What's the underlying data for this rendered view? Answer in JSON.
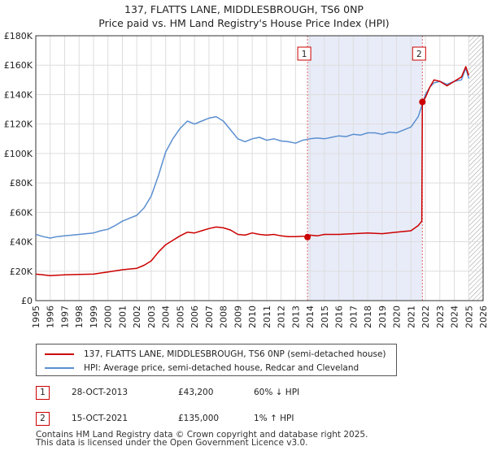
{
  "chart_data": {
    "type": "line",
    "title": "137, FLATTS LANE, MIDDLESBROUGH, TS6 0NP",
    "subtitle": "Price paid vs. HM Land Registry's House Price Index (HPI)",
    "xlabel": "",
    "ylabel": "",
    "xlim": [
      1995,
      2026
    ],
    "ylim": [
      0,
      180000
    ],
    "x_ticks": [
      1995,
      1996,
      1997,
      1998,
      1999,
      2000,
      2001,
      2002,
      2003,
      2004,
      2005,
      2006,
      2007,
      2008,
      2009,
      2010,
      2011,
      2012,
      2013,
      2014,
      2015,
      2016,
      2017,
      2018,
      2019,
      2020,
      2021,
      2022,
      2023,
      2024,
      2025,
      2026
    ],
    "y_ticks": [
      0,
      20000,
      40000,
      60000,
      80000,
      100000,
      120000,
      140000,
      160000,
      180000
    ],
    "y_tick_labels": [
      "£0",
      "£20K",
      "£40K",
      "£60K",
      "£80K",
      "£100K",
      "£120K",
      "£140K",
      "£160K",
      "£180K"
    ],
    "grid": true,
    "future_hatch_from": 2025.0,
    "shaded_range": [
      2013.83,
      2021.79
    ],
    "series": [
      {
        "name": "137, FLATTS LANE, MIDDLESBROUGH, TS6 0NP (semi-detached house)",
        "color": "#cc0000",
        "x": [
          1995.0,
          1995.5,
          1996.0,
          1997.0,
          1998.0,
          1999.0,
          2000.0,
          2001.0,
          2001.5,
          2002.0,
          2002.5,
          2003.0,
          2003.5,
          2004.0,
          2004.5,
          2005.0,
          2005.5,
          2006.0,
          2006.5,
          2007.0,
          2007.5,
          2008.0,
          2008.5,
          2009.0,
          2009.5,
          2010.0,
          2010.5,
          2011.0,
          2011.5,
          2012.0,
          2012.5,
          2013.0,
          2013.5,
          2013.83,
          2014.0,
          2014.5,
          2015.0,
          2016.0,
          2017.0,
          2018.0,
          2019.0,
          2020.0,
          2020.5,
          2021.0,
          2021.5,
          2021.75,
          2021.79,
          2022.0,
          2022.3,
          2022.6,
          2023.0,
          2023.5,
          2024.0,
          2024.5,
          2024.8,
          2025.0
        ],
        "y": [
          18000,
          17500,
          17000,
          17500,
          17800,
          18000,
          19500,
          21000,
          21500,
          22000,
          24000,
          27000,
          33000,
          38000,
          41000,
          44000,
          46500,
          46000,
          47500,
          49000,
          50000,
          49500,
          48000,
          45000,
          44500,
          46000,
          45000,
          44500,
          45000,
          44000,
          43500,
          43500,
          43800,
          43200,
          44500,
          44000,
          45000,
          45000,
          45500,
          46000,
          45500,
          46500,
          47000,
          47500,
          51000,
          54000,
          135000,
          138000,
          145000,
          150000,
          149000,
          146000,
          149000,
          152000,
          159000,
          153000
        ]
      },
      {
        "name": "HPI: Average price, semi-detached house, Redcar and Cleveland",
        "color": "#5b8fd0",
        "x": [
          1995.0,
          1995.5,
          1996.0,
          1996.5,
          1997.0,
          1997.5,
          1998.0,
          1998.5,
          1999.0,
          1999.5,
          2000.0,
          2000.5,
          2001.0,
          2001.5,
          2002.0,
          2002.5,
          2003.0,
          2003.5,
          2004.0,
          2004.5,
          2005.0,
          2005.5,
          2006.0,
          2006.5,
          2007.0,
          2007.5,
          2008.0,
          2008.5,
          2009.0,
          2009.5,
          2010.0,
          2010.5,
          2011.0,
          2011.5,
          2012.0,
          2012.5,
          2013.0,
          2013.5,
          2014.0,
          2014.5,
          2015.0,
          2015.5,
          2016.0,
          2016.5,
          2017.0,
          2017.5,
          2018.0,
          2018.5,
          2019.0,
          2019.5,
          2020.0,
          2020.5,
          2021.0,
          2021.5,
          2021.79,
          2022.0,
          2022.3,
          2022.6,
          2023.0,
          2023.5,
          2024.0,
          2024.5,
          2024.8,
          2025.0
        ],
        "y": [
          45000,
          43500,
          42500,
          43500,
          44000,
          44500,
          45000,
          45500,
          46000,
          47500,
          48500,
          51000,
          54000,
          56000,
          58000,
          63000,
          71000,
          85000,
          101000,
          110000,
          117000,
          122000,
          120000,
          122000,
          124000,
          125000,
          122000,
          116000,
          110000,
          108000,
          110000,
          111000,
          109000,
          110000,
          108500,
          108000,
          107000,
          109000,
          110000,
          110500,
          110000,
          111000,
          112000,
          111500,
          113000,
          112500,
          114000,
          114000,
          113000,
          114500,
          114000,
          116000,
          118000,
          125000,
          133500,
          140000,
          145000,
          148000,
          149000,
          147000,
          149000,
          150000,
          158000,
          151000
        ]
      }
    ],
    "sale_markers": [
      {
        "label": "1",
        "x": 2013.83,
        "y": 43200
      },
      {
        "label": "2",
        "x": 2021.79,
        "y": 135000
      }
    ]
  },
  "legend": {
    "items": [
      {
        "label": "137, FLATTS LANE, MIDDLESBROUGH, TS6 0NP (semi-detached house)",
        "color": "#cc0000"
      },
      {
        "label": "HPI: Average price, semi-detached house, Redcar and Cleveland",
        "color": "#5b8fd0"
      }
    ]
  },
  "sales": [
    {
      "marker": "1",
      "date": "28-OCT-2013",
      "price": "£43,200",
      "hpi": "60% ↓ HPI"
    },
    {
      "marker": "2",
      "date": "15-OCT-2021",
      "price": "£135,000",
      "hpi": "1% ↑ HPI"
    }
  ],
  "footer": {
    "line1": "Contains HM Land Registry data © Crown copyright and database right 2025.",
    "line2": "This data is licensed under the Open Government Licence v3.0."
  }
}
